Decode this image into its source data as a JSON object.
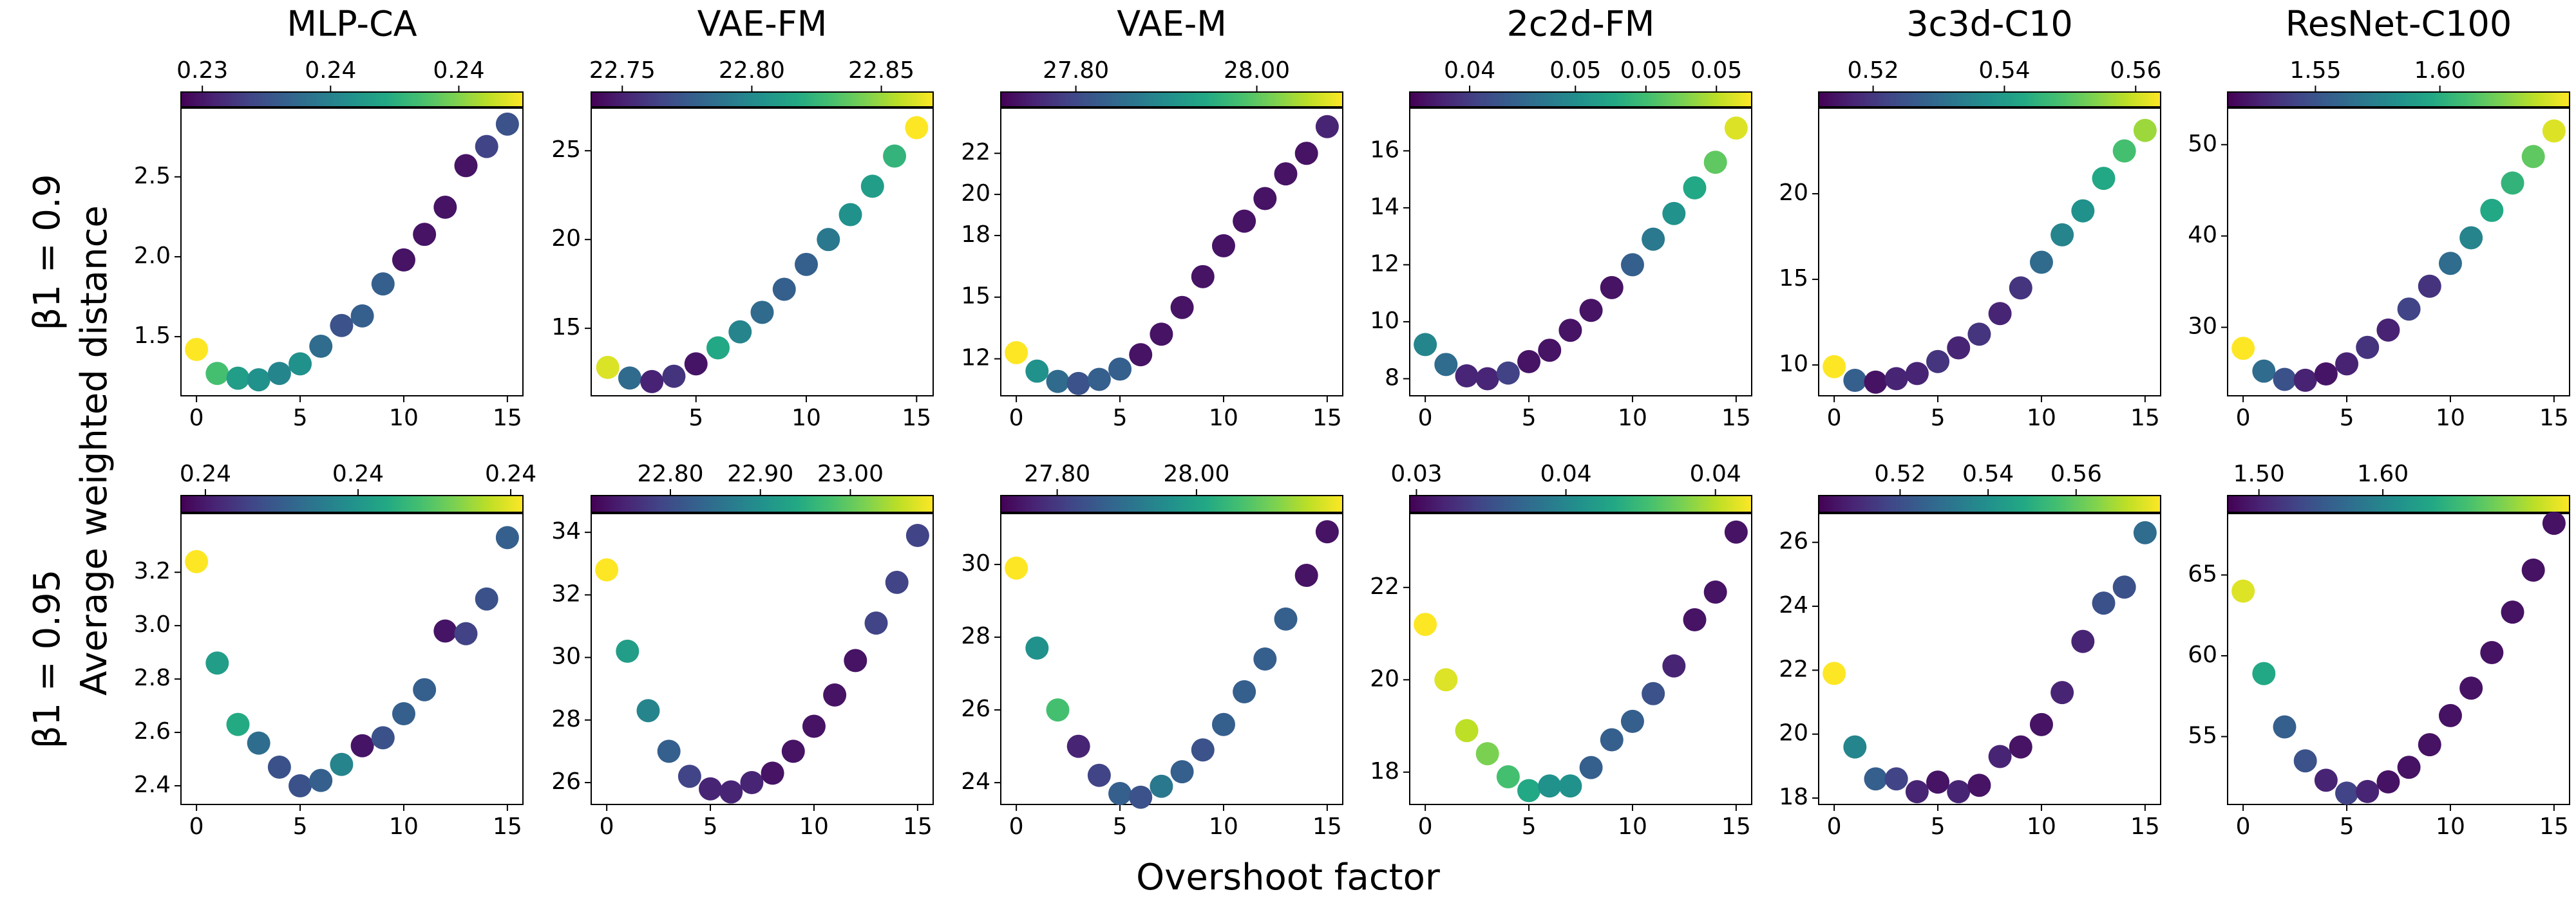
{
  "figure": {
    "xlabel": "Overshoot factor",
    "ylabel": "Average weighted distance",
    "row_labels": [
      "β1 = 0.9",
      "β1 = 0.95"
    ]
  },
  "chart_data": [
    {
      "type": "scatter",
      "title": "MLP-CA",
      "colormap": "viridis",
      "x": [
        0,
        1,
        2,
        3,
        4,
        5,
        6,
        7,
        8,
        9,
        10,
        11,
        12,
        13,
        14,
        15
      ],
      "values": [
        1.42,
        1.27,
        1.24,
        1.23,
        1.27,
        1.33,
        1.44,
        1.57,
        1.63,
        1.83,
        1.98,
        2.14,
        2.31,
        2.57,
        2.69,
        2.83
      ],
      "color_values": [
        0.2425,
        0.2401,
        0.2389,
        0.2385,
        0.2381,
        0.2385,
        0.2373,
        0.2365,
        0.2369,
        0.2369,
        0.2349,
        0.2349,
        0.2349,
        0.2349,
        0.2361,
        0.2365
      ],
      "clim": [
        0.2345,
        0.2425
      ],
      "cticks": [
        {
          "value": 0.235,
          "label": "0.23"
        },
        {
          "value": 0.238,
          "label": "0.24"
        },
        {
          "value": 0.241,
          "label": "0.24"
        }
      ],
      "xlim": [
        -0.75,
        15.75
      ],
      "xticks": [
        0,
        5,
        10,
        15
      ],
      "ylim": [
        1.13,
        2.93
      ],
      "yticks": [
        1.5,
        {
          "value": 2,
          "label": "2.0"
        },
        2.5
      ]
    },
    {
      "type": "scatter",
      "title": "VAE-FM",
      "colormap": "viridis",
      "x": [
        1,
        2,
        3,
        4,
        5,
        6,
        7,
        8,
        9,
        10,
        11,
        12,
        13,
        14,
        15
      ],
      "values": [
        12.8,
        12.2,
        12.0,
        12.3,
        13.0,
        13.9,
        14.8,
        15.9,
        17.2,
        18.6,
        20.0,
        21.4,
        23.0,
        24.7,
        26.3
      ],
      "color_values": [
        22.863,
        22.784,
        22.751,
        22.758,
        22.745,
        22.817,
        22.797,
        22.784,
        22.778,
        22.778,
        22.791,
        22.804,
        22.811,
        22.824,
        22.87
      ],
      "clim": [
        22.738,
        22.87
      ],
      "cticks": [
        22.75,
        {
          "value": 22.8,
          "label": "22.80"
        },
        22.85
      ],
      "xlim": [
        0.25,
        15.75
      ],
      "xticks": [
        5,
        10,
        15
      ],
      "ylim": [
        11.2,
        27.4
      ],
      "yticks": [
        15,
        20,
        25
      ]
    },
    {
      "type": "scatter",
      "title": "VAE-M",
      "colormap": "viridis",
      "x": [
        0,
        1,
        2,
        3,
        4,
        5,
        6,
        7,
        8,
        9,
        10,
        11,
        12,
        13,
        14,
        15
      ],
      "values": [
        12.3,
        11.4,
        10.9,
        10.8,
        11.0,
        11.5,
        12.2,
        13.2,
        14.5,
        16.0,
        17.5,
        18.7,
        19.8,
        21.0,
        22.0,
        23.3
      ],
      "color_values": [
        28.095,
        27.906,
        27.849,
        27.812,
        27.83,
        27.83,
        27.736,
        27.736,
        27.736,
        27.736,
        27.736,
        27.736,
        27.736,
        27.736,
        27.736,
        27.755
      ],
      "clim": [
        27.717,
        28.095
      ],
      "cticks": [
        {
          "value": 27.8,
          "label": "27.80"
        },
        {
          "value": 28,
          "label": "28.00"
        }
      ],
      "xlim": [
        -0.75,
        15.75
      ],
      "xticks": [
        0,
        5,
        10,
        15
      ],
      "ylim": [
        10.2,
        24.2
      ],
      "yticks": [
        12,
        15,
        18,
        20,
        22
      ]
    },
    {
      "type": "scatter",
      "title": "2c2d-FM",
      "colormap": "viridis",
      "x": [
        0,
        1,
        2,
        3,
        4,
        5,
        6,
        7,
        8,
        9,
        10,
        11,
        12,
        13,
        14,
        15
      ],
      "values": [
        9.2,
        8.5,
        8.1,
        8.0,
        8.2,
        8.6,
        9.0,
        9.7,
        10.4,
        11.2,
        12.0,
        12.9,
        13.8,
        14.7,
        15.6,
        16.8
      ],
      "color_values": [
        0.0467,
        0.0457,
        0.0433,
        0.0433,
        0.0442,
        0.0428,
        0.0428,
        0.0428,
        0.0428,
        0.0428,
        0.0452,
        0.0462,
        0.0472,
        0.0481,
        0.0496,
        0.0515
      ],
      "clim": [
        0.0423,
        0.052
      ],
      "cticks": [
        {
          "value": 0.044,
          "label": "0.04"
        },
        {
          "value": 0.047,
          "label": "0.05"
        },
        {
          "value": 0.049,
          "label": "0.05"
        },
        {
          "value": 0.051,
          "label": "0.05"
        }
      ],
      "xlim": [
        -0.75,
        15.75
      ],
      "xticks": [
        0,
        5,
        10,
        15
      ],
      "ylim": [
        7.4,
        17.5
      ],
      "yticks": [
        8,
        10,
        12,
        14,
        16
      ]
    },
    {
      "type": "scatter",
      "title": "3c3d-C10",
      "colormap": "viridis",
      "x": [
        0,
        1,
        2,
        3,
        4,
        5,
        6,
        7,
        8,
        9,
        10,
        11,
        12,
        13,
        14,
        15
      ],
      "values": [
        9.9,
        9.1,
        9.0,
        9.2,
        9.5,
        10.2,
        11.0,
        11.8,
        13.0,
        14.5,
        16.0,
        17.6,
        19.0,
        20.9,
        22.5,
        23.7
      ],
      "color_values": [
        0.5638,
        0.5273,
        0.5143,
        0.5169,
        0.5169,
        0.5195,
        0.5169,
        0.5195,
        0.5169,
        0.5195,
        0.5299,
        0.5351,
        0.5378,
        0.543,
        0.5482,
        0.556
      ],
      "clim": [
        0.5117,
        0.5638
      ],
      "cticks": [
        0.52,
        0.54,
        0.56
      ],
      "xlim": [
        -0.75,
        15.75
      ],
      "xticks": [
        0,
        5,
        10,
        15
      ],
      "ylim": [
        8.2,
        25.0
      ],
      "yticks": [
        10,
        15,
        20
      ]
    },
    {
      "type": "scatter",
      "title": "ResNet-C100",
      "colormap": "viridis",
      "x": [
        0,
        1,
        2,
        3,
        4,
        5,
        6,
        7,
        8,
        9,
        10,
        11,
        12,
        13,
        14,
        15
      ],
      "values": [
        27.7,
        25.2,
        24.3,
        24.2,
        24.9,
        26.0,
        27.8,
        29.7,
        32.0,
        34.5,
        37.0,
        39.8,
        42.8,
        45.8,
        48.7,
        51.5
      ],
      "color_values": [
        1.652,
        1.563,
        1.549,
        1.528,
        1.522,
        1.528,
        1.535,
        1.528,
        1.542,
        1.535,
        1.563,
        1.576,
        1.597,
        1.604,
        1.618,
        1.645
      ],
      "clim": [
        1.5147,
        1.6521
      ],
      "cticks": [
        1.55,
        {
          "value": 1.6,
          "label": "1.60"
        }
      ],
      "xlim": [
        -0.75,
        15.75
      ],
      "xticks": [
        0,
        5,
        10,
        15
      ],
      "ylim": [
        22.5,
        54
      ],
      "yticks": [
        30,
        40,
        50
      ]
    },
    {
      "type": "scatter",
      "colormap": "viridis",
      "x": [
        0,
        1,
        2,
        3,
        4,
        5,
        6,
        7,
        8,
        9,
        10,
        11,
        12,
        13,
        14,
        15
      ],
      "values": [
        3.24,
        2.86,
        2.63,
        2.56,
        2.47,
        2.4,
        2.42,
        2.48,
        2.55,
        2.58,
        2.67,
        2.76,
        2.98,
        2.97,
        3.1,
        3.33
      ],
      "color_values": [
        0.2422,
        0.2397,
        0.24,
        0.2386,
        0.238,
        0.238,
        0.2383,
        0.2391,
        0.2369,
        0.238,
        0.2383,
        0.2383,
        0.2369,
        0.2377,
        0.238,
        0.2383
      ],
      "clim": [
        0.2366,
        0.2422
      ],
      "cticks": [
        {
          "value": 0.237,
          "label": "0.24"
        },
        {
          "value": 0.2395,
          "label": "0.24"
        },
        {
          "value": 0.242,
          "label": "0.24"
        }
      ],
      "xlim": [
        -0.75,
        15.75
      ],
      "xticks": [
        0,
        5,
        10,
        15
      ],
      "ylim": [
        2.33,
        3.42
      ],
      "yticks": [
        2.4,
        2.6,
        2.8,
        {
          "value": 3,
          "label": "3.0"
        },
        3.2
      ]
    },
    {
      "type": "scatter",
      "colormap": "viridis",
      "x": [
        0,
        1,
        2,
        3,
        4,
        5,
        6,
        7,
        8,
        9,
        10,
        11,
        12,
        13,
        14,
        15
      ],
      "values": [
        32.8,
        30.2,
        28.3,
        27.0,
        26.2,
        25.8,
        25.7,
        26.0,
        26.3,
        27.0,
        27.8,
        28.8,
        29.9,
        31.1,
        32.4,
        33.9
      ],
      "color_values": [
        23.092,
        22.921,
        22.883,
        22.826,
        22.788,
        22.75,
        22.75,
        22.75,
        22.731,
        22.731,
        22.731,
        22.731,
        22.731,
        22.788,
        22.788,
        22.788
      ],
      "clim": [
        22.712,
        23.092
      ],
      "cticks": [
        {
          "value": 22.8,
          "label": "22.80"
        },
        {
          "value": 22.9,
          "label": "22.90"
        },
        {
          "value": 23,
          "label": "23.00"
        }
      ],
      "xlim": [
        -0.75,
        15.75
      ],
      "xticks": [
        0,
        5,
        10,
        15
      ],
      "ylim": [
        25.3,
        34.6
      ],
      "yticks": [
        26,
        28,
        30,
        32,
        34
      ]
    },
    {
      "type": "scatter",
      "colormap": "viridis",
      "x": [
        0,
        1,
        2,
        3,
        4,
        5,
        6,
        7,
        8,
        9,
        10,
        11,
        12,
        13,
        14,
        15
      ],
      "values": [
        29.9,
        27.7,
        26.0,
        25.0,
        24.2,
        23.7,
        23.6,
        23.9,
        24.3,
        24.9,
        25.6,
        26.5,
        27.4,
        28.5,
        29.7,
        30.9
      ],
      "color_values": [
        28.21,
        27.965,
        28.063,
        27.768,
        27.817,
        27.866,
        27.842,
        27.915,
        27.866,
        27.842,
        27.866,
        27.866,
        27.866,
        27.866,
        27.744,
        27.744
      ],
      "clim": [
        27.719,
        28.21
      ],
      "cticks": [
        {
          "value": 27.8,
          "label": "27.80"
        },
        {
          "value": 28,
          "label": "28.00"
        }
      ],
      "xlim": [
        -0.75,
        15.75
      ],
      "xticks": [
        0,
        5,
        10,
        15
      ],
      "ylim": [
        23.4,
        31.4
      ],
      "yticks": [
        24,
        26,
        28,
        30
      ]
    },
    {
      "type": "scatter",
      "colormap": "viridis",
      "x": [
        0,
        1,
        2,
        3,
        4,
        5,
        6,
        7,
        8,
        9,
        10,
        11,
        12,
        13,
        14,
        15
      ],
      "values": [
        21.2,
        20.0,
        18.9,
        18.4,
        17.9,
        17.6,
        17.7,
        17.7,
        18.1,
        18.7,
        19.1,
        19.7,
        20.3,
        21.3,
        21.9,
        23.2
      ],
      "color_values": [
        0.04297,
        0.04251,
        0.04206,
        0.04114,
        0.04023,
        0.03931,
        0.0384,
        0.0384,
        0.03657,
        0.03657,
        0.03657,
        0.03611,
        0.03474,
        0.03428,
        0.03428,
        0.03428
      ],
      "clim": [
        0.03382,
        0.04297
      ],
      "cticks": [
        {
          "value": 0.034,
          "label": "0.03"
        },
        {
          "value": 0.038,
          "label": "0.04"
        },
        {
          "value": 0.042,
          "label": "0.04"
        }
      ],
      "xlim": [
        -0.75,
        15.75
      ],
      "xticks": [
        0,
        5,
        10,
        15
      ],
      "ylim": [
        17.3,
        23.6
      ],
      "yticks": [
        18,
        20,
        22
      ]
    },
    {
      "type": "scatter",
      "colormap": "viridis",
      "x": [
        0,
        1,
        2,
        3,
        4,
        5,
        6,
        7,
        8,
        9,
        10,
        11,
        12,
        13,
        14,
        15
      ],
      "values": [
        21.9,
        19.6,
        18.6,
        18.6,
        18.2,
        18.5,
        18.2,
        18.4,
        19.3,
        19.6,
        20.3,
        21.3,
        22.9,
        24.1,
        24.6,
        26.3
      ],
      "color_values": [
        0.5792,
        0.5365,
        0.5248,
        0.517,
        0.5093,
        0.5054,
        0.5093,
        0.5054,
        0.5093,
        0.5054,
        0.5054,
        0.5093,
        0.5093,
        0.5209,
        0.5209,
        0.5287
      ],
      "clim": [
        0.5015,
        0.5792
      ],
      "cticks": [
        0.52,
        0.54,
        0.56
      ],
      "xlim": [
        -0.75,
        15.75
      ],
      "xticks": [
        0,
        5,
        10,
        15
      ],
      "ylim": [
        17.8,
        26.9
      ],
      "yticks": [
        18,
        20,
        22,
        24,
        26
      ]
    },
    {
      "type": "scatter",
      "colormap": "viridis",
      "x": [
        0,
        1,
        2,
        3,
        4,
        5,
        6,
        7,
        8,
        9,
        10,
        11,
        12,
        13,
        14,
        15
      ],
      "values": [
        64.0,
        58.9,
        55.6,
        53.5,
        52.3,
        51.5,
        51.6,
        52.2,
        53.1,
        54.5,
        56.3,
        58.0,
        60.2,
        62.7,
        65.3,
        68.2
      ],
      "color_values": [
        1.737,
        1.64,
        1.558,
        1.544,
        1.502,
        1.53,
        1.502,
        1.488,
        1.488,
        1.488,
        1.488,
        1.488,
        1.488,
        1.488,
        1.488,
        1.488
      ],
      "clim": [
        1.4747,
        1.7507
      ],
      "cticks": [
        {
          "value": 1.5,
          "label": "1.50"
        },
        {
          "value": 1.6,
          "label": "1.60"
        }
      ],
      "xlim": [
        -0.75,
        15.75
      ],
      "xticks": [
        0,
        5,
        10,
        15
      ],
      "ylim": [
        50.8,
        68.8
      ],
      "yticks": [
        55,
        60,
        65
      ]
    }
  ]
}
